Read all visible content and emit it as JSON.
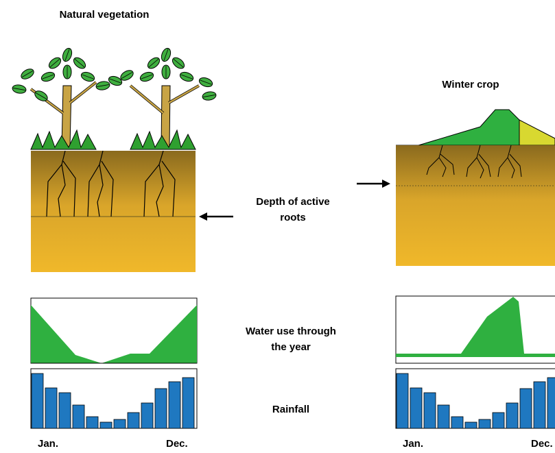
{
  "left": {
    "title": "Natural vegetation",
    "rainfall": [
      80,
      59,
      52,
      34,
      17,
      9,
      13,
      23,
      37,
      58,
      68,
      74
    ],
    "start": "Jan.",
    "end": "Dec."
  },
  "right": {
    "title": "Winter crop",
    "rainfall": [
      80,
      59,
      52,
      34,
      17,
      9,
      13,
      23,
      37,
      58,
      68,
      74
    ],
    "start": "Jan.",
    "end": "Dec."
  },
  "labels": {
    "roots": [
      "Depth of active",
      "roots"
    ],
    "water": [
      "Water use through",
      "the year"
    ],
    "rain": "Rainfall"
  }
}
